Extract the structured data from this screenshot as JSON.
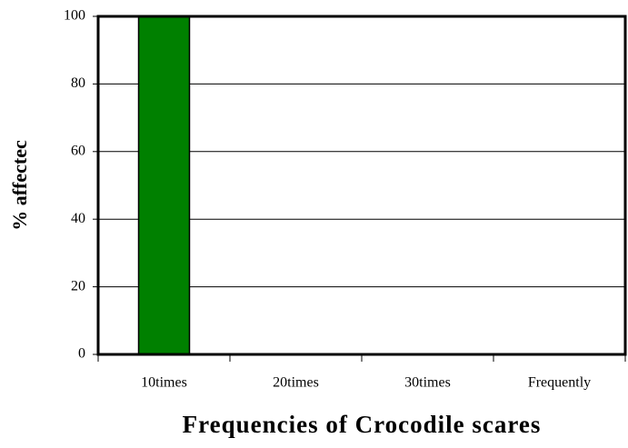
{
  "chart_data": {
    "type": "bar",
    "categories": [
      "10times",
      "20times",
      "30times",
      "Frequently"
    ],
    "values": [
      100,
      0,
      0,
      0
    ],
    "color": "#008000",
    "x_label": "Frequencies of Crocodile scares",
    "y_label": "% affectec",
    "ylim": [
      0,
      100
    ],
    "yticks": [
      0,
      20,
      40,
      60,
      80,
      100
    ],
    "grid": true
  }
}
